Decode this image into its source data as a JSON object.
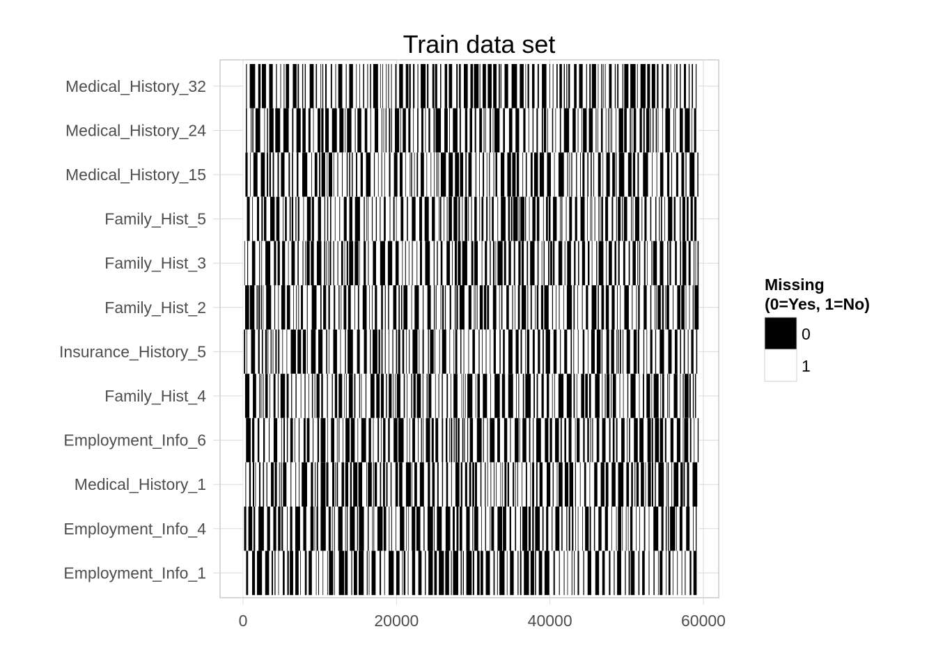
{
  "chart_data": {
    "type": "heatmap",
    "title": "Train data set",
    "xlabel": "",
    "ylabel": "",
    "xlim": [
      -3000,
      62000
    ],
    "x_ticks": [
      "0",
      "20000",
      "40000",
      "60000"
    ],
    "x_tick_values": [
      0,
      20000,
      40000,
      60000
    ],
    "x_range": [
      0,
      59381
    ],
    "rows": [
      "Medical_History_32",
      "Medical_History_24",
      "Medical_History_15",
      "Family_Hist_5",
      "Family_Hist_3",
      "Family_Hist_2",
      "Insurance_History_5",
      "Family_Hist_4",
      "Employment_Info_6",
      "Medical_History_1",
      "Employment_Info_4",
      "Employment_Info_1"
    ],
    "cell_values": [
      0,
      1
    ],
    "grid": true,
    "legend": {
      "title_line1": "Missing",
      "title_line2": "(0=Yes, 1=No)",
      "position": "right",
      "entries": [
        {
          "label": "0",
          "color": "#000000"
        },
        {
          "label": "1",
          "color": "#ffffff"
        }
      ]
    },
    "colors": {
      "missing": "#000000",
      "present": "#ffffff",
      "grid": "#d9d9d9",
      "panel_border": "#bfbfbf",
      "axis_text": "#4d4d4d"
    }
  }
}
